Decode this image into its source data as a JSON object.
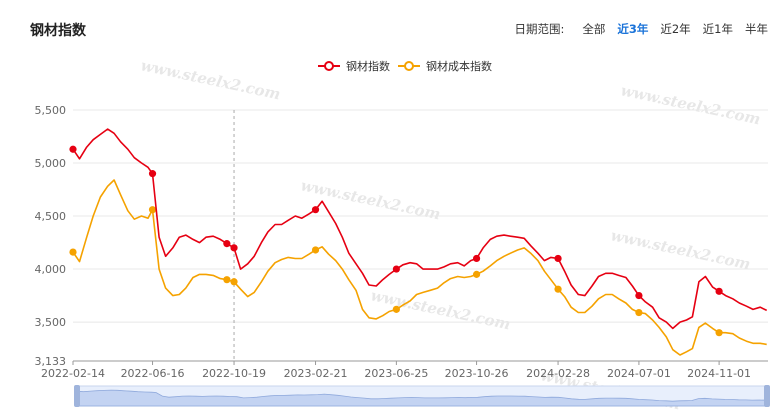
{
  "header": {
    "title": "钢材指数",
    "range_label": "日期范围:",
    "range_options": [
      {
        "label": "全部",
        "active": false
      },
      {
        "label": "近3年",
        "active": true
      },
      {
        "label": "近2年",
        "active": false
      },
      {
        "label": "近1年",
        "active": false
      },
      {
        "label": "半年",
        "active": false
      }
    ]
  },
  "watermark": "www.steelx2.com",
  "chart_data": {
    "type": "line",
    "legend_position": "top-center",
    "grid": true,
    "x_range": [
      "2022-02-14",
      "2025-01-15"
    ],
    "ylim": [
      3133,
      5500
    ],
    "x_ticks": [
      "2022-02-14",
      "2022-06-16",
      "2022-10-19",
      "2023-02-21",
      "2023-06-25",
      "2023-10-26",
      "2024-02-28",
      "2024-07-01",
      "2024-11-01"
    ],
    "y_ticks": [
      3133,
      3500,
      4000,
      4500,
      5000,
      5500
    ],
    "y_tick_labels": [
      "3,133",
      "3,500",
      "4,000",
      "4,500",
      "5,000",
      "5,500"
    ],
    "series": [
      {
        "name": "钢材指数",
        "color": "#e60012",
        "x": [
          "2022-02-14",
          "2022-02-24",
          "2022-03-07",
          "2022-03-17",
          "2022-03-28",
          "2022-04-08",
          "2022-04-18",
          "2022-04-28",
          "2022-05-09",
          "2022-05-19",
          "2022-05-30",
          "2022-06-09",
          "2022-06-16",
          "2022-06-26",
          "2022-07-06",
          "2022-07-17",
          "2022-07-27",
          "2022-08-06",
          "2022-08-17",
          "2022-08-27",
          "2022-09-06",
          "2022-09-17",
          "2022-09-28",
          "2022-10-08",
          "2022-10-19",
          "2022-10-29",
          "2022-11-09",
          "2022-11-19",
          "2022-11-30",
          "2022-12-10",
          "2022-12-21",
          "2022-12-31",
          "2023-01-10",
          "2023-01-21",
          "2023-01-31",
          "2023-02-11",
          "2023-02-21",
          "2023-03-03",
          "2023-03-13",
          "2023-03-24",
          "2023-04-03",
          "2023-04-13",
          "2023-04-24",
          "2023-05-04",
          "2023-05-14",
          "2023-05-25",
          "2023-06-04",
          "2023-06-14",
          "2023-06-25",
          "2023-07-05",
          "2023-07-16",
          "2023-07-26",
          "2023-08-05",
          "2023-08-16",
          "2023-08-27",
          "2023-09-06",
          "2023-09-16",
          "2023-09-27",
          "2023-10-07",
          "2023-10-17",
          "2023-10-26",
          "2023-11-05",
          "2023-11-16",
          "2023-11-26",
          "2023-12-07",
          "2023-12-17",
          "2023-12-28",
          "2024-01-07",
          "2024-01-17",
          "2024-01-28",
          "2024-02-07",
          "2024-02-17",
          "2024-02-28",
          "2024-03-09",
          "2024-03-19",
          "2024-03-30",
          "2024-04-09",
          "2024-04-20",
          "2024-04-30",
          "2024-05-11",
          "2024-05-21",
          "2024-05-31",
          "2024-06-11",
          "2024-06-21",
          "2024-07-01",
          "2024-07-11",
          "2024-07-22",
          "2024-08-01",
          "2024-08-12",
          "2024-08-22",
          "2024-09-02",
          "2024-09-12",
          "2024-09-21",
          "2024-10-01",
          "2024-10-11",
          "2024-10-22",
          "2024-11-01",
          "2024-11-11",
          "2024-11-22",
          "2024-12-02",
          "2024-12-13",
          "2024-12-23",
          "2025-01-03",
          "2025-01-13"
        ],
        "values": [
          5130,
          5040,
          5150,
          5220,
          5270,
          5320,
          5280,
          5200,
          5130,
          5050,
          5000,
          4960,
          4900,
          4300,
          4120,
          4200,
          4300,
          4320,
          4280,
          4250,
          4300,
          4310,
          4280,
          4240,
          4200,
          4000,
          4050,
          4120,
          4250,
          4350,
          4420,
          4420,
          4460,
          4500,
          4480,
          4520,
          4560,
          4640,
          4540,
          4430,
          4300,
          4150,
          4050,
          3960,
          3850,
          3840,
          3900,
          3950,
          4000,
          4040,
          4060,
          4050,
          4000,
          4000,
          4000,
          4020,
          4050,
          4060,
          4030,
          4080,
          4100,
          4200,
          4280,
          4310,
          4320,
          4310,
          4300,
          4290,
          4220,
          4150,
          4080,
          4110,
          4100,
          3980,
          3850,
          3760,
          3750,
          3840,
          3930,
          3960,
          3960,
          3940,
          3920,
          3840,
          3750,
          3690,
          3640,
          3540,
          3500,
          3440,
          3500,
          3520,
          3550,
          3880,
          3930,
          3830,
          3790,
          3750,
          3720,
          3680,
          3650,
          3620,
          3640,
          3610
        ],
        "markers": [
          "2022-02-14",
          "2022-06-16",
          "2022-10-08",
          "2022-10-19",
          "2023-02-21",
          "2023-06-25",
          "2023-10-26",
          "2024-02-28",
          "2024-07-01",
          "2024-11-01"
        ]
      },
      {
        "name": "钢材成本指数",
        "color": "#f5a200",
        "x": [
          "2022-02-14",
          "2022-02-24",
          "2022-03-07",
          "2022-03-17",
          "2022-03-28",
          "2022-04-08",
          "2022-04-18",
          "2022-04-28",
          "2022-05-09",
          "2022-05-19",
          "2022-05-30",
          "2022-06-09",
          "2022-06-16",
          "2022-06-26",
          "2022-07-06",
          "2022-07-17",
          "2022-07-27",
          "2022-08-06",
          "2022-08-17",
          "2022-08-27",
          "2022-09-06",
          "2022-09-17",
          "2022-09-28",
          "2022-10-08",
          "2022-10-19",
          "2022-10-29",
          "2022-11-09",
          "2022-11-19",
          "2022-11-30",
          "2022-12-10",
          "2022-12-21",
          "2022-12-31",
          "2023-01-10",
          "2023-01-21",
          "2023-01-31",
          "2023-02-11",
          "2023-02-21",
          "2023-03-03",
          "2023-03-13",
          "2023-03-24",
          "2023-04-03",
          "2023-04-13",
          "2023-04-24",
          "2023-05-04",
          "2023-05-14",
          "2023-05-25",
          "2023-06-04",
          "2023-06-14",
          "2023-06-25",
          "2023-07-05",
          "2023-07-16",
          "2023-07-26",
          "2023-08-05",
          "2023-08-16",
          "2023-08-27",
          "2023-09-06",
          "2023-09-16",
          "2023-09-27",
          "2023-10-07",
          "2023-10-17",
          "2023-10-26",
          "2023-11-05",
          "2023-11-16",
          "2023-11-26",
          "2023-12-07",
          "2023-12-17",
          "2023-12-28",
          "2024-01-07",
          "2024-01-17",
          "2024-01-28",
          "2024-02-07",
          "2024-02-17",
          "2024-02-28",
          "2024-03-09",
          "2024-03-19",
          "2024-03-30",
          "2024-04-09",
          "2024-04-20",
          "2024-04-30",
          "2024-05-11",
          "2024-05-21",
          "2024-05-31",
          "2024-06-11",
          "2024-06-21",
          "2024-07-01",
          "2024-07-11",
          "2024-07-22",
          "2024-08-01",
          "2024-08-12",
          "2024-08-22",
          "2024-09-02",
          "2024-09-12",
          "2024-09-21",
          "2024-10-01",
          "2024-10-11",
          "2024-10-22",
          "2024-11-01",
          "2024-11-11",
          "2024-11-22",
          "2024-12-02",
          "2024-12-13",
          "2024-12-23",
          "2025-01-03",
          "2025-01-13"
        ],
        "values": [
          4160,
          4070,
          4300,
          4500,
          4680,
          4780,
          4840,
          4700,
          4550,
          4470,
          4500,
          4480,
          4560,
          4000,
          3820,
          3750,
          3760,
          3820,
          3920,
          3950,
          3950,
          3940,
          3910,
          3900,
          3880,
          3810,
          3740,
          3780,
          3880,
          3980,
          4060,
          4090,
          4110,
          4100,
          4100,
          4140,
          4180,
          4210,
          4140,
          4080,
          4000,
          3900,
          3800,
          3620,
          3540,
          3530,
          3560,
          3600,
          3620,
          3660,
          3700,
          3760,
          3780,
          3800,
          3820,
          3870,
          3910,
          3930,
          3920,
          3930,
          3950,
          3980,
          4030,
          4080,
          4120,
          4150,
          4180,
          4200,
          4150,
          4080,
          3980,
          3900,
          3810,
          3740,
          3640,
          3590,
          3590,
          3650,
          3720,
          3760,
          3760,
          3720,
          3680,
          3620,
          3590,
          3580,
          3520,
          3450,
          3360,
          3240,
          3190,
          3220,
          3250,
          3450,
          3490,
          3440,
          3400,
          3400,
          3390,
          3350,
          3320,
          3300,
          3300,
          3290
        ],
        "markers": [
          "2022-02-14",
          "2022-06-16",
          "2022-10-08",
          "2022-10-19",
          "2023-02-21",
          "2023-06-25",
          "2023-10-26",
          "2024-02-28",
          "2024-07-01",
          "2024-11-01"
        ]
      }
    ]
  }
}
